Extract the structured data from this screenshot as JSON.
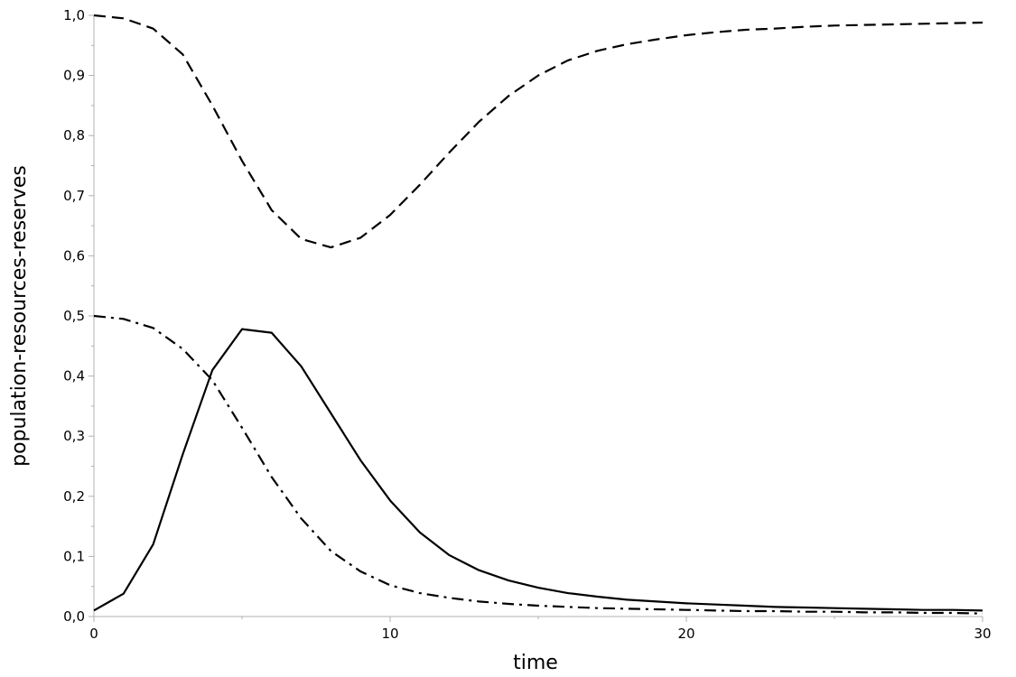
{
  "chart_data": {
    "type": "line",
    "title": "",
    "xlabel": "time",
    "ylabel": "population-resources-reserves",
    "xlim": [
      0,
      30
    ],
    "ylim": [
      0,
      1
    ],
    "grid": false,
    "x_ticks": [
      0,
      10,
      20,
      30
    ],
    "x_tick_labels": [
      "0",
      "10",
      "20",
      "30"
    ],
    "y_ticks": [
      0,
      0.1,
      0.2,
      0.3,
      0.4,
      0.5,
      0.6,
      0.7,
      0.8,
      0.9,
      1.0
    ],
    "y_tick_labels": [
      "0,0",
      "0,1",
      "0,2",
      "0,3",
      "0,4",
      "0,5",
      "0,6",
      "0,7",
      "0,8",
      "0,9",
      "1,0"
    ],
    "x": [
      0,
      1,
      2,
      3,
      4,
      5,
      6,
      7,
      8,
      9,
      10,
      11,
      12,
      13,
      14,
      15,
      16,
      17,
      18,
      19,
      20,
      21,
      22,
      23,
      24,
      25,
      26,
      27,
      28,
      29,
      30
    ],
    "series": [
      {
        "style": "solid",
        "values": [
          0.01,
          0.038,
          0.12,
          0.27,
          0.41,
          0.478,
          0.472,
          0.416,
          0.338,
          0.26,
          0.193,
          0.14,
          0.102,
          0.077,
          0.06,
          0.048,
          0.039,
          0.033,
          0.028,
          0.025,
          0.022,
          0.02,
          0.018,
          0.016,
          0.015,
          0.014,
          0.013,
          0.012,
          0.011,
          0.011,
          0.01
        ]
      },
      {
        "style": "dashed",
        "values": [
          1.0,
          0.995,
          0.978,
          0.935,
          0.85,
          0.758,
          0.676,
          0.628,
          0.614,
          0.63,
          0.668,
          0.718,
          0.772,
          0.823,
          0.866,
          0.9,
          0.925,
          0.941,
          0.952,
          0.96,
          0.967,
          0.972,
          0.976,
          0.978,
          0.981,
          0.983,
          0.984,
          0.985,
          0.986,
          0.987,
          0.988
        ]
      },
      {
        "style": "dash-dot",
        "values": [
          0.5,
          0.495,
          0.48,
          0.445,
          0.393,
          0.314,
          0.232,
          0.163,
          0.109,
          0.075,
          0.052,
          0.039,
          0.031,
          0.025,
          0.021,
          0.018,
          0.016,
          0.014,
          0.013,
          0.012,
          0.011,
          0.01,
          0.009,
          0.009,
          0.008,
          0.008,
          0.007,
          0.007,
          0.006,
          0.006,
          0.005
        ]
      }
    ]
  }
}
